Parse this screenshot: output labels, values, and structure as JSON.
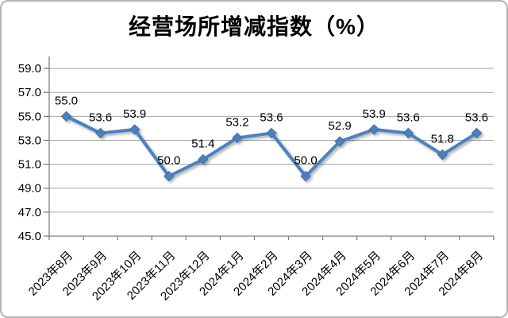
{
  "chart_data": {
    "type": "line",
    "title": "经营场所增减指数（%）",
    "categories": [
      "2023年8月",
      "2023年9月",
      "2023年10月",
      "2023年11月",
      "2023年12月",
      "2024年1月",
      "2024年2月",
      "2024年3月",
      "2024年4月",
      "2024年5月",
      "2024年6月",
      "2024年7月",
      "2024年8月"
    ],
    "values": [
      55.0,
      53.6,
      53.9,
      50.0,
      51.4,
      53.2,
      53.6,
      50.0,
      52.9,
      53.9,
      53.6,
      51.8,
      53.6
    ],
    "data_labels": [
      "55.0",
      "53.6",
      "53.9",
      "50.0",
      "51.4",
      "53.2",
      "53.6",
      "50.0",
      "52.9",
      "53.9",
      "53.6",
      "51.8",
      "53.6"
    ],
    "xlabel": "",
    "ylabel": "",
    "ylim": [
      45,
      60
    ],
    "ytick_values": [
      59,
      57,
      55,
      53,
      51,
      49,
      47,
      45
    ],
    "ytick_labels": [
      "59.0",
      "57.0",
      "55.0",
      "53.0",
      "51.0",
      "49.0",
      "47.0",
      "45.0"
    ],
    "grid": "horizontal-on",
    "legend": "none",
    "marker": "diamond",
    "colors": {
      "series_line": "#4E81BD",
      "marker_fill": "#4E81BD",
      "marker_stroke": "#3C6DA5",
      "gridline": "#A6A6A6",
      "axis": "#808080",
      "text": "#000000",
      "frame_border": "#B5B3B1"
    }
  }
}
